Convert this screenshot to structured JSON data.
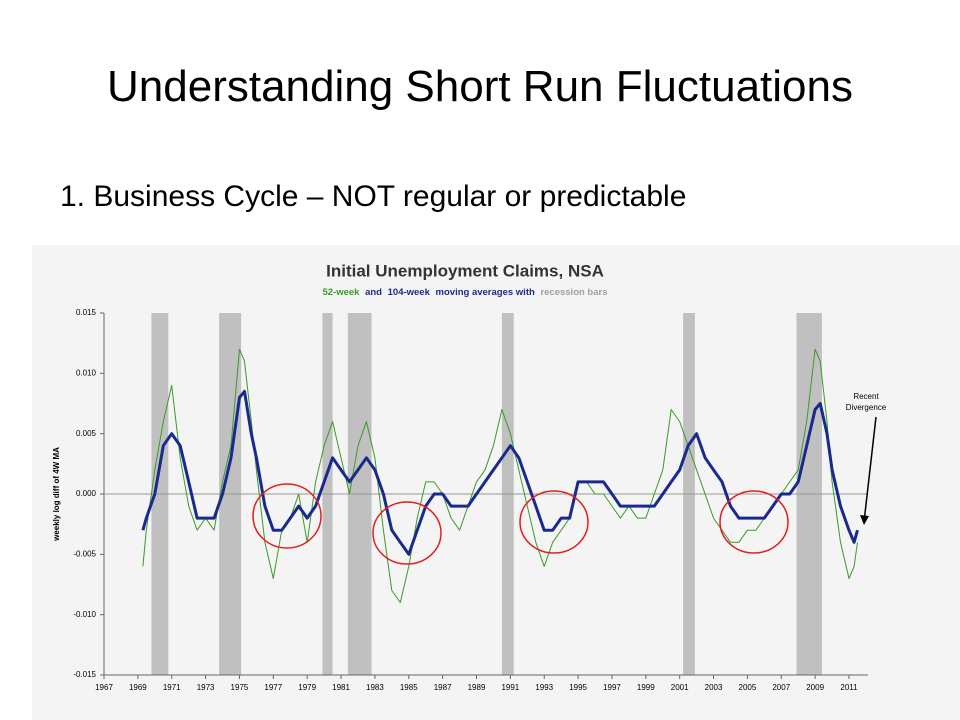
{
  "slide": {
    "title": "Understanding Short Run Fluctuations",
    "bullet": "1. Business Cycle – NOT regular or predictable"
  },
  "chart_data": {
    "type": "line",
    "title": "Initial Unemployment Claims, NSA",
    "subtitle_parts": [
      {
        "text": "52-week",
        "color": "#3a9a2a"
      },
      {
        "text": "and",
        "color": "#1a2a8c"
      },
      {
        "text": "104-week",
        "color": "#1a2a8c"
      },
      {
        "text": "moving averages with",
        "color": "#1a2a8c"
      },
      {
        "text": "recession bars",
        "color": "#a0a0a0"
      }
    ],
    "ylabel": "weekly log diff of 4W MA",
    "annotation": [
      "Recent",
      "Divergence"
    ],
    "xlim": [
      1967,
      2011
    ],
    "xticks": [
      1967,
      1969,
      1971,
      1973,
      1975,
      1977,
      1979,
      1981,
      1983,
      1985,
      1987,
      1989,
      1991,
      1993,
      1995,
      1997,
      1999,
      2001,
      2003,
      2005,
      2007,
      2009,
      2011
    ],
    "ylim": [
      -0.015,
      0.015
    ],
    "yticks": [
      -0.015,
      {
        "value": -0.01,
        "label": "-0.010"
      },
      -0.005,
      {
        "value": 0,
        "label": "0.000"
      },
      0.005,
      {
        "value": 0.01,
        "label": "0.010"
      },
      0.015
    ],
    "recession_color": "#c0c0c0",
    "recessions": [
      {
        "start": 1969.8,
        "end": 1970.8
      },
      {
        "start": 1973.8,
        "end": 1975.1
      },
      {
        "start": 1979.9,
        "end": 1980.5
      },
      {
        "start": 1981.4,
        "end": 1982.8
      },
      {
        "start": 1990.5,
        "end": 1991.2
      },
      {
        "start": 2001.2,
        "end": 2001.9
      },
      {
        "start": 2007.9,
        "end": 2009.4
      }
    ],
    "x": [
      1969.3,
      1969.5,
      1970,
      1970.5,
      1971,
      1971.5,
      1972,
      1972.5,
      1973,
      1973.5,
      1974,
      1974.5,
      1975,
      1975.3,
      1975.7,
      1976,
      1976.5,
      1977,
      1977.5,
      1978,
      1978.5,
      1979,
      1979.5,
      1980,
      1980.5,
      1981,
      1981.5,
      1982,
      1982.5,
      1983,
      1983.5,
      1984,
      1984.5,
      1985,
      1985.5,
      1986,
      1986.5,
      1987,
      1987.5,
      1988,
      1988.5,
      1989,
      1989.5,
      1990,
      1990.5,
      1991,
      1991.5,
      1992,
      1992.5,
      1993,
      1993.5,
      1994,
      1994.5,
      1995,
      1995.5,
      1996,
      1996.5,
      1997,
      1997.5,
      1998,
      1998.5,
      1999,
      1999.5,
      2000,
      2000.5,
      2001,
      2001.5,
      2002,
      2002.5,
      2003,
      2003.5,
      2004,
      2004.5,
      2005,
      2005.5,
      2006,
      2006.5,
      2007,
      2007.5,
      2008,
      2008.5,
      2009,
      2009.3,
      2009.7,
      2010,
      2010.5,
      2011,
      2011.3,
      2011.5
    ],
    "series": [
      {
        "color": "#3a9a2a",
        "width": 1,
        "values": [
          -0.006,
          -0.003,
          0.002,
          0.006,
          0.009,
          0.003,
          -0.001,
          -0.003,
          -0.002,
          -0.003,
          0.001,
          0.004,
          0.012,
          0.011,
          0.006,
          0.002,
          -0.004,
          -0.007,
          -0.003,
          -0.002,
          0,
          -0.004,
          0.001,
          0.004,
          0.006,
          0.003,
          0,
          0.004,
          0.006,
          0.003,
          -0.003,
          -0.008,
          -0.009,
          -0.006,
          -0.002,
          0.001,
          0.001,
          0,
          -0.002,
          -0.003,
          -0.001,
          0.001,
          0.002,
          0.004,
          0.007,
          0.005,
          0.002,
          -0.001,
          -0.004,
          -0.006,
          -0.004,
          -0.003,
          -0.002,
          0.001,
          0.001,
          0,
          0,
          -0.001,
          -0.002,
          -0.001,
          -0.002,
          -0.002,
          0,
          0.002,
          0.007,
          0.006,
          0.004,
          0.002,
          0,
          -0.002,
          -0.003,
          -0.004,
          -0.004,
          -0.003,
          -0.003,
          -0.002,
          -0.001,
          0,
          0.001,
          0.002,
          0.006,
          0.012,
          0.011,
          0.006,
          0.001,
          -0.004,
          -0.007,
          -0.006,
          -0.004
        ]
      },
      {
        "color": "#1a2a8c",
        "width": 3,
        "values": [
          -0.003,
          -0.002,
          0,
          0.004,
          0.005,
          0.004,
          0.001,
          -0.002,
          -0.002,
          -0.002,
          0,
          0.003,
          0.008,
          0.0085,
          0.005,
          0.003,
          -0.001,
          -0.003,
          -0.003,
          -0.002,
          -0.001,
          -0.002,
          -0.001,
          0.001,
          0.003,
          0.002,
          0.001,
          0.002,
          0.003,
          0.002,
          0,
          -0.003,
          -0.004,
          -0.005,
          -0.003,
          -0.001,
          0,
          0,
          -0.001,
          -0.001,
          -0.001,
          0,
          0.001,
          0.002,
          0.003,
          0.004,
          0.003,
          0.001,
          -0.001,
          -0.003,
          -0.003,
          -0.002,
          -0.002,
          0.001,
          0.001,
          0.001,
          0.001,
          0,
          -0.001,
          -0.001,
          -0.001,
          -0.001,
          -0.001,
          0,
          0.001,
          0.002,
          0.004,
          0.005,
          0.003,
          0.002,
          0.001,
          -0.001,
          -0.002,
          -0.002,
          -0.002,
          -0.002,
          -0.001,
          0,
          0,
          0.001,
          0.004,
          0.007,
          0.0075,
          0.005,
          0.002,
          -0.001,
          -0.003,
          -0.004,
          -0.003
        ]
      }
    ]
  }
}
